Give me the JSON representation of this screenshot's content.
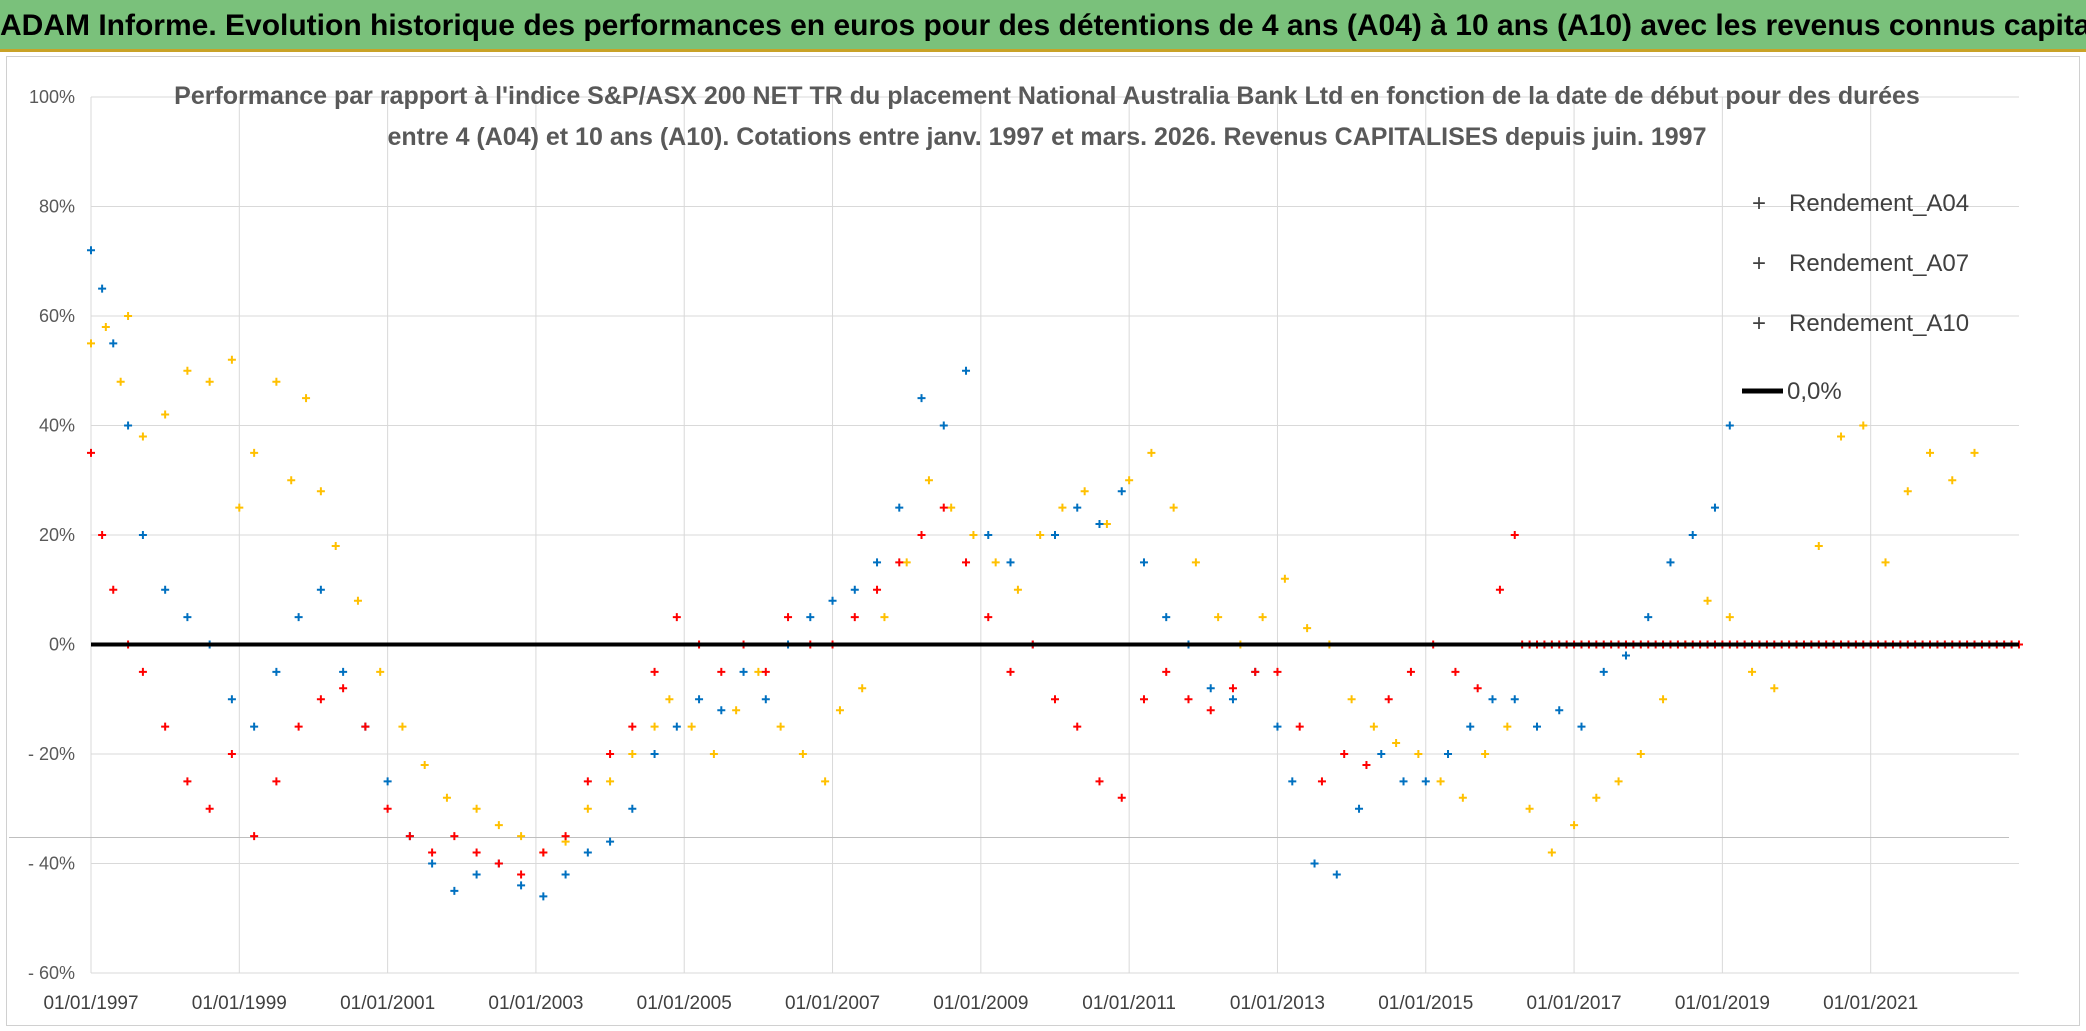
{
  "banner": {
    "title": "ADAM Informe. Evolution historique des performances en euros pour des détentions de 4 ans (A04) à 10 ans (A10) avec les revenus connus capitalisés"
  },
  "colors": {
    "banner_bg": "#7ac17b",
    "A04": "#ffc000",
    "A07": "#0070c0",
    "A10": "#ff0000",
    "zero_line": "#000000",
    "grid": "#d9d9d9"
  },
  "chart_data": {
    "type": "scatter",
    "title_line1": "Performance par rapport à l'indice S&P/ASX 200 NET TR  du placement National Australia Bank Ltd en fonction de la date de début pour des durées",
    "title_line2": "entre 4 (A04) et 10 ans (A10). Cotations entre janv. 1997 et mars. 2026. Revenus CAPITALISES depuis juin. 1997",
    "xlabel": "",
    "ylabel": "",
    "xlim": [
      1997.0,
      2023.0
    ],
    "ylim": [
      -60,
      100
    ],
    "grid": true,
    "legend_position": "top-right",
    "y_ticks": [
      {
        "value": 100,
        "label": "100%"
      },
      {
        "value": 80,
        "label": "80%"
      },
      {
        "value": 60,
        "label": "60%"
      },
      {
        "value": 40,
        "label": "40%"
      },
      {
        "value": 20,
        "label": "20%"
      },
      {
        "value": 0,
        "label": "0%"
      },
      {
        "value": -20,
        "label": "- 20%"
      },
      {
        "value": -40,
        "label": "- 40%"
      },
      {
        "value": -60,
        "label": "- 60%"
      }
    ],
    "x_ticks": [
      {
        "value": 1997,
        "label": "01/01/1997"
      },
      {
        "value": 1999,
        "label": "01/01/1999"
      },
      {
        "value": 2001,
        "label": "01/01/2001"
      },
      {
        "value": 2003,
        "label": "01/01/2003"
      },
      {
        "value": 2005,
        "label": "01/01/2005"
      },
      {
        "value": 2007,
        "label": "01/01/2007"
      },
      {
        "value": 2009,
        "label": "01/01/2009"
      },
      {
        "value": 2011,
        "label": "01/01/2011"
      },
      {
        "value": 2013,
        "label": "01/01/2013"
      },
      {
        "value": 2015,
        "label": "01/01/2015"
      },
      {
        "value": 2017,
        "label": "01/01/2017"
      },
      {
        "value": 2019,
        "label": "01/01/2019"
      },
      {
        "value": 2021,
        "label": "01/01/2021"
      }
    ],
    "reference_line": {
      "name": "0,0%",
      "value": 0
    },
    "series": [
      {
        "name": "Rendement_A04",
        "color": "#ffc000",
        "x": [
          1997.0,
          1997.2,
          1997.4,
          1997.5,
          1997.7,
          1998.0,
          1998.3,
          1998.6,
          1998.9,
          1999.0,
          1999.2,
          1999.5,
          1999.7,
          1999.9,
          2000.1,
          2000.3,
          2000.6,
          2000.9,
          2001.2,
          2001.5,
          2001.8,
          2002.2,
          2002.5,
          2002.8,
          2003.1,
          2003.4,
          2003.7,
          2004.0,
          2004.3,
          2004.6,
          2004.8,
          2005.1,
          2005.4,
          2005.7,
          2006.0,
          2006.3,
          2006.6,
          2006.9,
          2007.1,
          2007.4,
          2007.7,
          2008.0,
          2008.3,
          2008.6,
          2008.9,
          2009.2,
          2009.5,
          2009.8,
          2010.1,
          2010.4,
          2010.7,
          2011.0,
          2011.3,
          2011.6,
          2011.9,
          2012.2,
          2012.5,
          2012.8,
          2013.1,
          2013.4,
          2013.7,
          2014.0,
          2014.3,
          2014.6,
          2014.9,
          2015.2,
          2015.5,
          2015.8,
          2016.1,
          2016.4,
          2016.7,
          2017.0,
          2017.3,
          2017.6,
          2017.9,
          2018.2,
          2018.5,
          2018.8,
          2019.1,
          2019.4,
          2019.7,
          2020.0,
          2020.3,
          2020.6,
          2020.9,
          2021.2,
          2021.5,
          2021.8,
          2022.1,
          2022.4
        ],
        "y": [
          55,
          58,
          48,
          60,
          38,
          42,
          50,
          48,
          52,
          25,
          35,
          48,
          30,
          45,
          28,
          18,
          8,
          -5,
          -15,
          -22,
          -28,
          -30,
          -33,
          -35,
          -38,
          -36,
          -30,
          -25,
          -20,
          -15,
          -10,
          -15,
          -20,
          -12,
          -5,
          -15,
          -20,
          -25,
          -12,
          -8,
          5,
          15,
          30,
          25,
          20,
          15,
          10,
          20,
          25,
          28,
          22,
          30,
          35,
          25,
          15,
          5,
          0,
          5,
          12,
          3,
          0,
          -10,
          -15,
          -18,
          -20,
          -25,
          -28,
          -20,
          -15,
          -30,
          -38,
          -33,
          -28,
          -25,
          -20,
          -10,
          0,
          8,
          5,
          -5,
          -8,
          0,
          18,
          38,
          40,
          15,
          28,
          35,
          30,
          35
        ]
      },
      {
        "name": "Rendement_A07",
        "color": "#0070c0",
        "x": [
          1997.0,
          1997.15,
          1997.3,
          1997.5,
          1997.7,
          1998.0,
          1998.3,
          1998.6,
          1998.9,
          1999.2,
          1999.5,
          1999.8,
          2000.1,
          2000.4,
          2000.7,
          2001.0,
          2001.3,
          2001.6,
          2001.9,
          2002.2,
          2002.5,
          2002.8,
          2003.1,
          2003.4,
          2003.7,
          2004.0,
          2004.3,
          2004.6,
          2004.9,
          2005.2,
          2005.5,
          2005.8,
          2006.1,
          2006.4,
          2006.7,
          2007.0,
          2007.3,
          2007.6,
          2007.9,
          2008.2,
          2008.5,
          2008.8,
          2009.1,
          2009.4,
          2009.7,
          2010.0,
          2010.3,
          2010.6,
          2010.9,
          2011.2,
          2011.5,
          2011.8,
          2012.1,
          2012.4,
          2012.7,
          2013.0,
          2013.2,
          2013.5,
          2013.8,
          2014.1,
          2014.4,
          2014.7,
          2015.0,
          2015.3,
          2015.6,
          2015.9,
          2016.2,
          2016.5,
          2016.8,
          2017.1,
          2017.4,
          2017.7,
          2018.0,
          2018.3,
          2018.6,
          2018.9,
          2019.1
        ],
        "y": [
          72,
          65,
          55,
          40,
          20,
          10,
          5,
          0,
          -10,
          -15,
          -5,
          5,
          10,
          -5,
          -15,
          -25,
          -35,
          -40,
          -45,
          -42,
          -40,
          -44,
          -46,
          -42,
          -38,
          -36,
          -30,
          -20,
          -15,
          -10,
          -12,
          -5,
          -10,
          0,
          5,
          8,
          10,
          15,
          25,
          45,
          40,
          50,
          20,
          15,
          0,
          20,
          25,
          22,
          28,
          15,
          5,
          0,
          -8,
          -10,
          -5,
          -15,
          -25,
          -40,
          -42,
          -30,
          -20,
          -25,
          -25,
          -20,
          -15,
          -10,
          -10,
          -15,
          -12,
          -15,
          -5,
          -2,
          5,
          15,
          20,
          25,
          40
        ]
      },
      {
        "name": "Rendement_A10",
        "color": "#ff0000",
        "x": [
          1997.0,
          1997.15,
          1997.3,
          1997.5,
          1997.7,
          1998.0,
          1998.3,
          1998.6,
          1998.9,
          1999.2,
          1999.5,
          1999.8,
          2000.1,
          2000.4,
          2000.7,
          2001.0,
          2001.3,
          2001.6,
          2001.9,
          2002.2,
          2002.5,
          2002.8,
          2003.1,
          2003.4,
          2003.7,
          2004.0,
          2004.3,
          2004.6,
          2004.9,
          2005.2,
          2005.5,
          2005.8,
          2006.1,
          2006.4,
          2006.7,
          2007.0,
          2007.3,
          2007.6,
          2007.9,
          2008.2,
          2008.5,
          2008.8,
          2009.1,
          2009.4,
          2009.7,
          2010.0,
          2010.3,
          2010.6,
          2010.9,
          2011.2,
          2011.5,
          2011.8,
          2012.1,
          2012.4,
          2012.7,
          2013.0,
          2013.3,
          2013.6,
          2013.9,
          2014.2,
          2014.5,
          2014.8,
          2015.1,
          2015.4,
          2015.7,
          2016.0,
          2016.2
        ],
        "y": [
          35,
          20,
          10,
          0,
          -5,
          -15,
          -25,
          -30,
          -20,
          -35,
          -25,
          -15,
          -10,
          -8,
          -15,
          -30,
          -35,
          -38,
          -35,
          -38,
          -40,
          -42,
          -38,
          -35,
          -25,
          -20,
          -15,
          -5,
          5,
          0,
          -5,
          0,
          -5,
          5,
          0,
          0,
          5,
          10,
          15,
          20,
          25,
          15,
          5,
          -5,
          0,
          -10,
          -15,
          -25,
          -28,
          -10,
          -5,
          -10,
          -12,
          -8,
          -5,
          -5,
          -15,
          -25,
          -20,
          -22,
          -10,
          -5,
          0,
          -5,
          -8,
          10,
          20
        ]
      }
    ],
    "padding_series": {
      "name": "Rendement_A10",
      "color": "#ff0000",
      "x_from": 2016.3,
      "x_to": 2023.0,
      "value": 0
    }
  }
}
